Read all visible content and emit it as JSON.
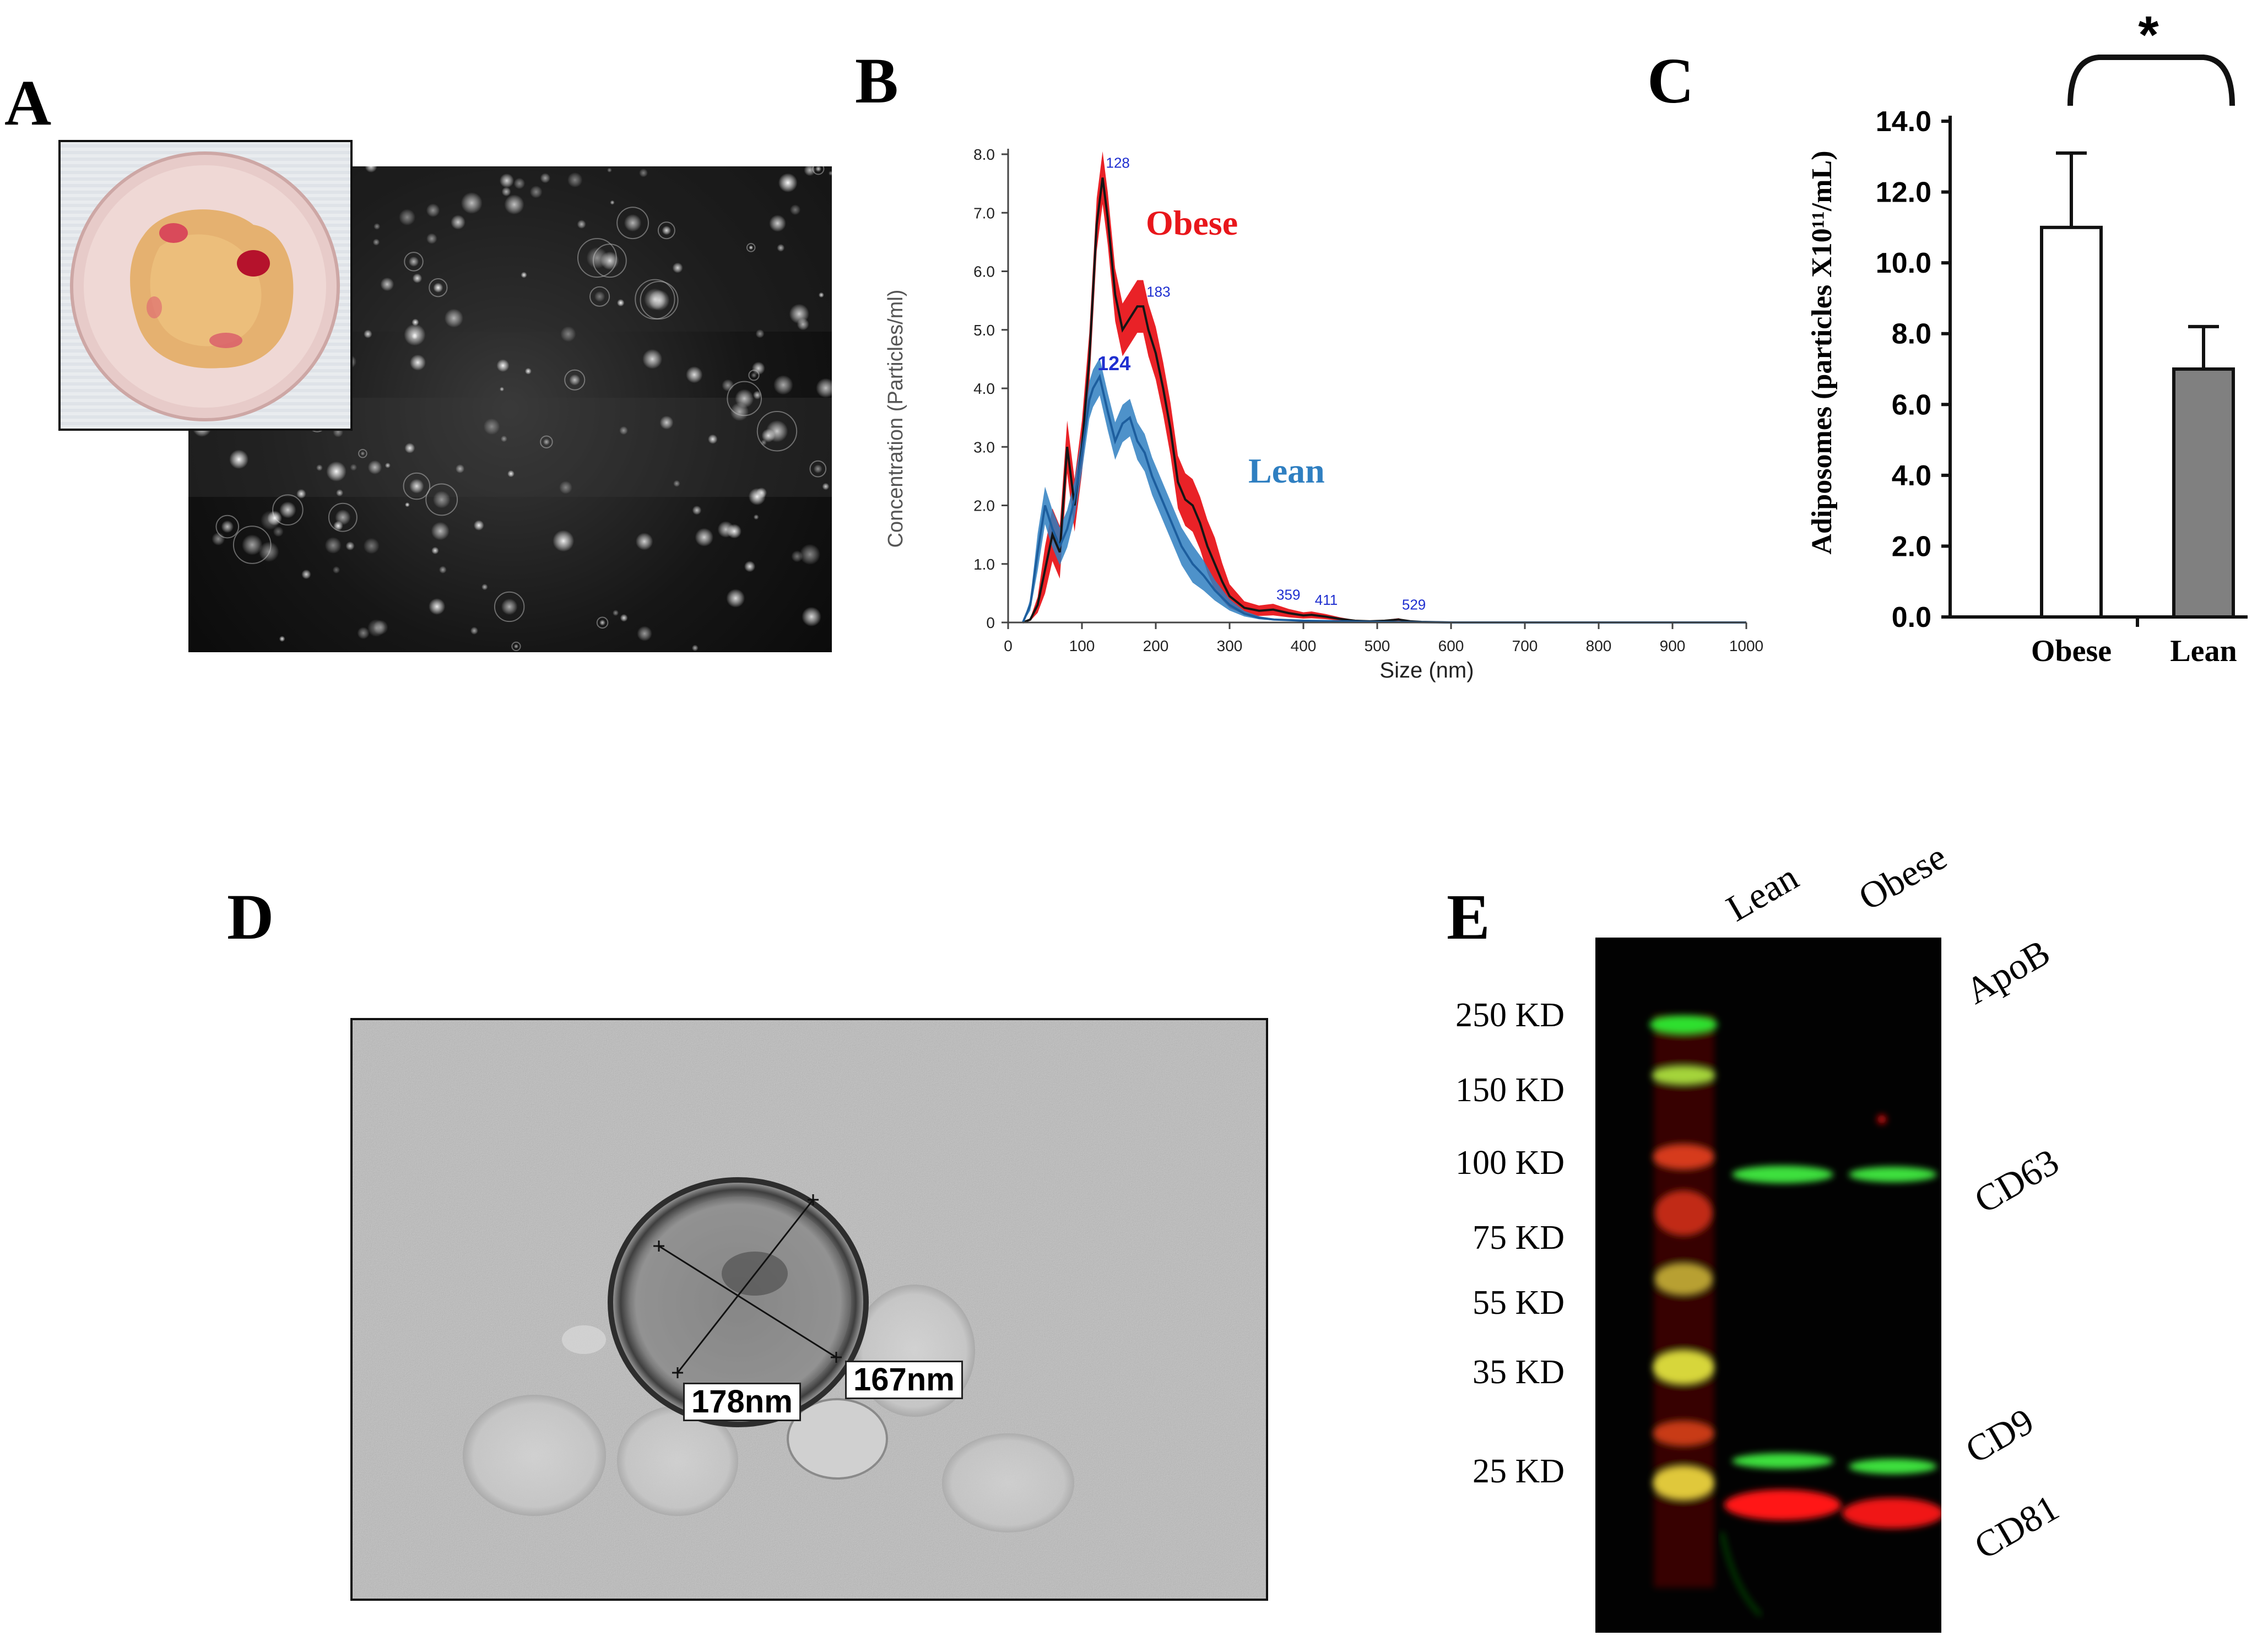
{
  "panels": {
    "A": {
      "letter": "A"
    },
    "B": {
      "letter": "B"
    },
    "C": {
      "letter": "C"
    },
    "D": {
      "letter": "D"
    },
    "E": {
      "letter": "E"
    }
  },
  "nta": {
    "series_labels": {
      "obese": "Obese",
      "lean": "Lean"
    },
    "peak_labels": {
      "obese": [
        "128",
        "183",
        "359",
        "411",
        "529"
      ],
      "lean": [
        "124"
      ]
    },
    "colors": {
      "obese_band": "#e8161b",
      "obese_line": "#151515",
      "lean_band": "#2f7fc1",
      "lean_line": "#1d5e9e",
      "peak_label": "#1f2fd0"
    }
  },
  "tem": {
    "measurements": [
      "178nm",
      "167nm"
    ]
  },
  "western": {
    "lanes": [
      "Lean",
      "Obese"
    ],
    "mw_markers": [
      "250 KD",
      "150 KD",
      "100 KD",
      "75 KD",
      "55 KD",
      "35 KD",
      "25 KD"
    ],
    "bands": [
      "ApoB",
      "CD63",
      "CD9",
      "CD81"
    ]
  },
  "chart_data": [
    {
      "type": "line",
      "xlabel": "Size (nm)",
      "ylabel": "Concentration (Particles/ml)",
      "xlim": [
        0,
        1000
      ],
      "ylim": [
        0,
        8.0
      ],
      "x_ticks": [
        "0",
        "100",
        "200",
        "300",
        "400",
        "500",
        "600",
        "700",
        "800",
        "900",
        "1000"
      ],
      "y_ticks": [
        "0",
        "1.0",
        "2.0",
        "3.0",
        "4.0",
        "5.0",
        "6.0",
        "7.0",
        "8.0"
      ],
      "grid": false,
      "series": [
        {
          "name": "Obese",
          "x": [
            20,
            30,
            40,
            50,
            60,
            70,
            80,
            90,
            100,
            110,
            120,
            128,
            135,
            145,
            155,
            165,
            175,
            183,
            190,
            200,
            210,
            220,
            230,
            240,
            250,
            260,
            270,
            280,
            290,
            300,
            320,
            340,
            359,
            380,
            400,
            411,
            430,
            450,
            470,
            490,
            510,
            529,
            545,
            560,
            600,
            700,
            800,
            900,
            1000
          ],
          "y": [
            0,
            0.05,
            0.3,
            0.9,
            1.5,
            1.2,
            3.0,
            2.0,
            3.0,
            4.5,
            6.8,
            7.6,
            6.9,
            5.6,
            5.0,
            5.2,
            5.4,
            5.4,
            5.0,
            4.6,
            4.0,
            3.3,
            2.4,
            2.1,
            2.0,
            1.7,
            1.3,
            1.0,
            0.7,
            0.45,
            0.25,
            0.2,
            0.22,
            0.16,
            0.12,
            0.13,
            0.1,
            0.06,
            0.03,
            0.02,
            0.03,
            0.05,
            0.02,
            0.01,
            0,
            0,
            0,
            0,
            0
          ]
        },
        {
          "name": "Lean",
          "x": [
            20,
            30,
            40,
            50,
            60,
            70,
            80,
            90,
            100,
            110,
            115,
            124,
            135,
            145,
            155,
            165,
            175,
            185,
            195,
            205,
            215,
            225,
            235,
            250,
            265,
            280,
            300,
            320,
            340,
            360,
            400,
            450,
            500,
            600,
            700,
            800,
            900,
            1000
          ],
          "y": [
            0,
            0.3,
            1.2,
            2.0,
            1.6,
            1.3,
            1.6,
            2.1,
            2.9,
            3.8,
            4.0,
            4.2,
            3.6,
            3.1,
            3.4,
            3.5,
            3.1,
            2.9,
            2.5,
            2.2,
            1.9,
            1.6,
            1.3,
            1.0,
            0.8,
            0.55,
            0.3,
            0.15,
            0.08,
            0.05,
            0.03,
            0.02,
            0.01,
            0,
            0,
            0,
            0,
            0
          ]
        }
      ]
    },
    {
      "type": "bar",
      "categories": [
        "Obese",
        "Lean"
      ],
      "values": [
        11.0,
        7.0
      ],
      "errors": [
        2.1,
        1.2
      ],
      "ylabel": "Adiposomes (particles X10¹¹/mL)",
      "ylim": [
        0,
        14.0
      ],
      "y_ticks": [
        "0.0",
        "2.0",
        "4.0",
        "6.0",
        "8.0",
        "10.0",
        "12.0",
        "14.0"
      ],
      "bar_colors": [
        "#ffffff",
        "#808080"
      ],
      "significance": "*",
      "grid": false
    }
  ]
}
